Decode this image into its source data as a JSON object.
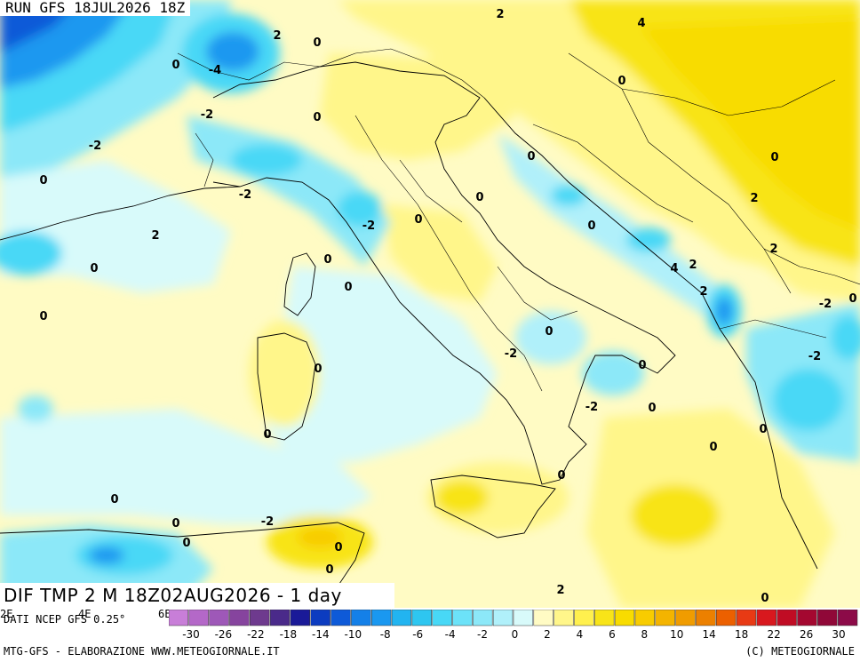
{
  "header": {
    "run_label": "RUN GFS 18JUL2026 18Z"
  },
  "map": {
    "title": "DIF TMP 2 M 18Z02AUG2026 - 1 day",
    "contour_labels": [
      "2",
      "4",
      "2",
      "0",
      "-4",
      "0",
      "-2",
      "0",
      "-2",
      "0",
      "-2",
      "-2",
      "0",
      "2",
      "0",
      "0",
      "0",
      "0",
      "0",
      "0",
      "0",
      "0",
      "0",
      "2",
      "4",
      "2",
      "2",
      "-2",
      "0",
      "-2",
      "0",
      "-2",
      "0",
      "0",
      "0",
      "0",
      "0",
      "0",
      "-2",
      "0",
      "0",
      "0",
      "2",
      "0",
      "-2",
      "0",
      "2",
      "0",
      "0",
      "0",
      "0",
      "-2"
    ]
  },
  "colors": {
    "warm_strong": "#f8dc00",
    "warm": "#fff68a",
    "neutral_warm": "#fffbc4",
    "neutral_cool": "#d8fafa",
    "cool": "#8ce8f8",
    "cold": "#2ec6f0",
    "very_cold": "#1480e8",
    "extreme_cold": "#0c3cc0"
  },
  "legend": {
    "source_text": "DATI NCEP GFS 0.25°",
    "lon_ticks": [
      "2E",
      "4E",
      "6E"
    ],
    "bins": [
      "#c87ed8",
      "#b468c8",
      "#9e58b8",
      "#86449e",
      "#6e3a8e",
      "#4a2a8a",
      "#1a1a98",
      "#0c3cc0",
      "#0e5ad8",
      "#1480e8",
      "#1a98f0",
      "#22b4f0",
      "#2ec6f0",
      "#48d8f6",
      "#6ce2f8",
      "#8ce8f8",
      "#b0f0fa",
      "#d8fafa",
      "#fffbc4",
      "#fff68a",
      "#fff04e",
      "#f8e418",
      "#f8dc00",
      "#f8cc00",
      "#f4b400",
      "#f09c00",
      "#ec8000",
      "#ec6000",
      "#e83a14",
      "#d8181e",
      "#c00c24",
      "#a40830",
      "#900838",
      "#8c0a48"
    ],
    "tick_labels": [
      "-30",
      "-26",
      "-22",
      "-18",
      "-14",
      "-10",
      "-8",
      "-6",
      "-4",
      "-2",
      "0",
      "2",
      "4",
      "6",
      "8",
      "10",
      "14",
      "18",
      "22",
      "26",
      "30"
    ],
    "credit_left": "MTG-GFS - ELABORAZIONE WWW.METEOGIORNALE.IT",
    "credit_right": "(C) METEOGIORNALE"
  }
}
